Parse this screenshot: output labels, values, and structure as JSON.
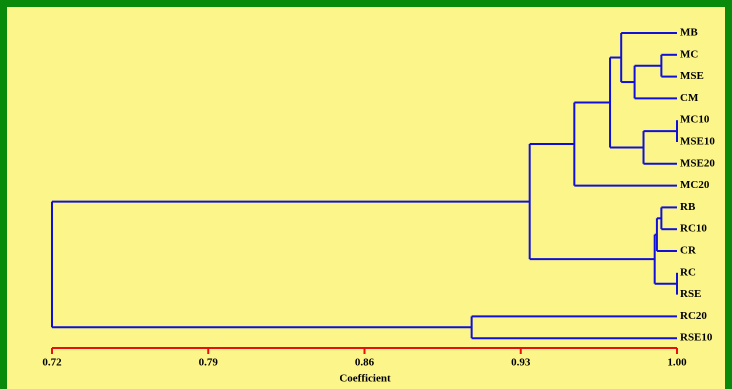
{
  "chart_data": {
    "type": "dendrogram",
    "x_label": "Coefficient",
    "leaves": [
      "MB",
      "MC",
      "MSE",
      "CM",
      "MC10",
      "MSE10",
      "MSE20",
      "MC20",
      "RB",
      "RC10",
      "CR",
      "RC",
      "RSE",
      "RC20",
      "RSE10"
    ],
    "merges": [
      {
        "children": [
          1,
          2
        ],
        "height": 0.993
      },
      {
        "children": [
          15,
          3
        ],
        "height": 0.981
      },
      {
        "children": [
          0,
          16
        ],
        "height": 0.975
      },
      {
        "children": [
          4,
          5
        ],
        "height": 1.0
      },
      {
        "children": [
          18,
          6
        ],
        "height": 0.985
      },
      {
        "children": [
          17,
          19
        ],
        "height": 0.97
      },
      {
        "children": [
          20,
          7
        ],
        "height": 0.954
      },
      {
        "children": [
          8,
          9
        ],
        "height": 0.993
      },
      {
        "children": [
          22,
          10
        ],
        "height": 0.991
      },
      {
        "children": [
          11,
          12
        ],
        "height": 1.0
      },
      {
        "children": [
          23,
          24
        ],
        "height": 0.99
      },
      {
        "children": [
          21,
          25
        ],
        "height": 0.934
      },
      {
        "children": [
          13,
          14
        ],
        "height": 0.908
      },
      {
        "children": [
          26,
          27
        ],
        "height": 0.72
      }
    ],
    "color": "#1010d8",
    "axis_color": "#e81010",
    "xlim": [
      0.72,
      1.0
    ],
    "xticks": [
      0.72,
      0.79,
      0.86,
      0.93,
      {
        "value": 1.0,
        "label": "1.00"
      }
    ]
  }
}
